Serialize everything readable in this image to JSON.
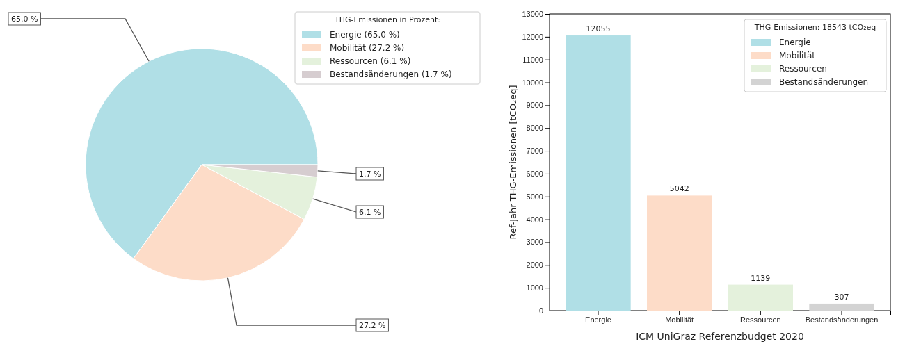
{
  "chart_data": [
    {
      "type": "pie",
      "categories": [
        "Energie (65.0 %)",
        "Mobilität (27.2 %)",
        "Ressourcen (6.1 %)",
        "Bestandsänderungen (1.7 %)"
      ],
      "values": [
        65.0,
        27.2,
        6.1,
        1.7
      ],
      "colors": [
        "#b0dfe6",
        "#fddcc8",
        "#e4f1dc",
        "#d6cdd0"
      ],
      "value_labels": [
        "65.0 %",
        "27.2 %",
        "6.1 %",
        "1.7 %"
      ],
      "legend": "top right",
      "legend_title": "THG-Emissionen in Prozent:"
    },
    {
      "type": "bar",
      "categories": [
        "Energie",
        "Mobilität",
        "Ressourcen",
        "Bestandsänderungen"
      ],
      "series": [
        {
          "name": "Energie",
          "color": "#b0dfe6",
          "values": [
            12055,
            null,
            null,
            null
          ]
        },
        {
          "name": "Mobilität",
          "color": "#fddcc8",
          "values": [
            null,
            5042,
            null,
            null
          ]
        },
        {
          "name": "Ressourcen",
          "color": "#e4f1dc",
          "values": [
            null,
            null,
            1139,
            null
          ]
        },
        {
          "name": "Bestandsänderungen",
          "color": "#d3d3d3",
          "values": [
            null,
            null,
            null,
            307
          ]
        }
      ],
      "data_labels": true,
      "ylim": [
        0,
        13000
      ],
      "yticks": [
        0,
        1000,
        2000,
        3000,
        4000,
        5000,
        6000,
        7000,
        8000,
        9000,
        10000,
        11000,
        12000,
        13000
      ],
      "ylabel": "Ref-Jahr THG-Emissionen [tCO₂eq]",
      "xlabel": "ICM UniGraz Referenzbudget 2020",
      "legend": "top right",
      "legend_title": "THG-Emissionen: 18543 tCO₂eq"
    }
  ]
}
